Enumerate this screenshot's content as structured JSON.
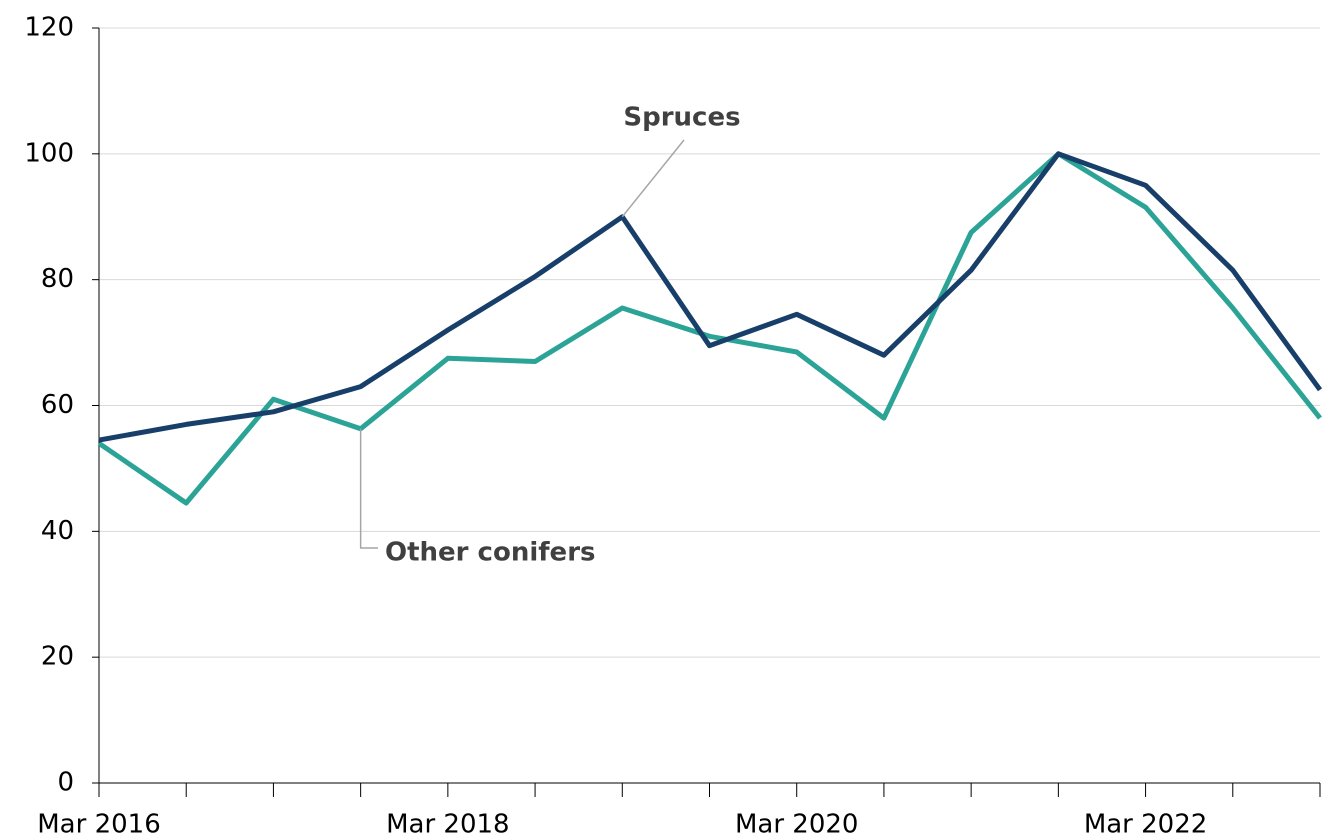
{
  "chart_data": {
    "type": "line",
    "categories": [
      "Mar 2016",
      null,
      null,
      null,
      "Mar 2018",
      null,
      null,
      null,
      "Mar 2020",
      null,
      null,
      null,
      "Mar 2022",
      null,
      null
    ],
    "series": [
      {
        "name": "Spruces",
        "color": "#173f69",
        "values": [
          54.5,
          57,
          59,
          63,
          72,
          80.5,
          90,
          69.5,
          74.5,
          68,
          81.5,
          100,
          95,
          81.5,
          62.5
        ]
      },
      {
        "name": "Other conifers",
        "color": "#2ba396",
        "values": [
          54,
          44.5,
          61,
          56.3,
          67.5,
          67,
          75.5,
          71,
          68.5,
          58,
          87.5,
          100,
          91.5,
          75.5,
          58
        ]
      }
    ],
    "ylim": [
      0,
      120
    ],
    "yticks": [
      0,
      20,
      40,
      60,
      80,
      100,
      120
    ],
    "grid": true
  }
}
